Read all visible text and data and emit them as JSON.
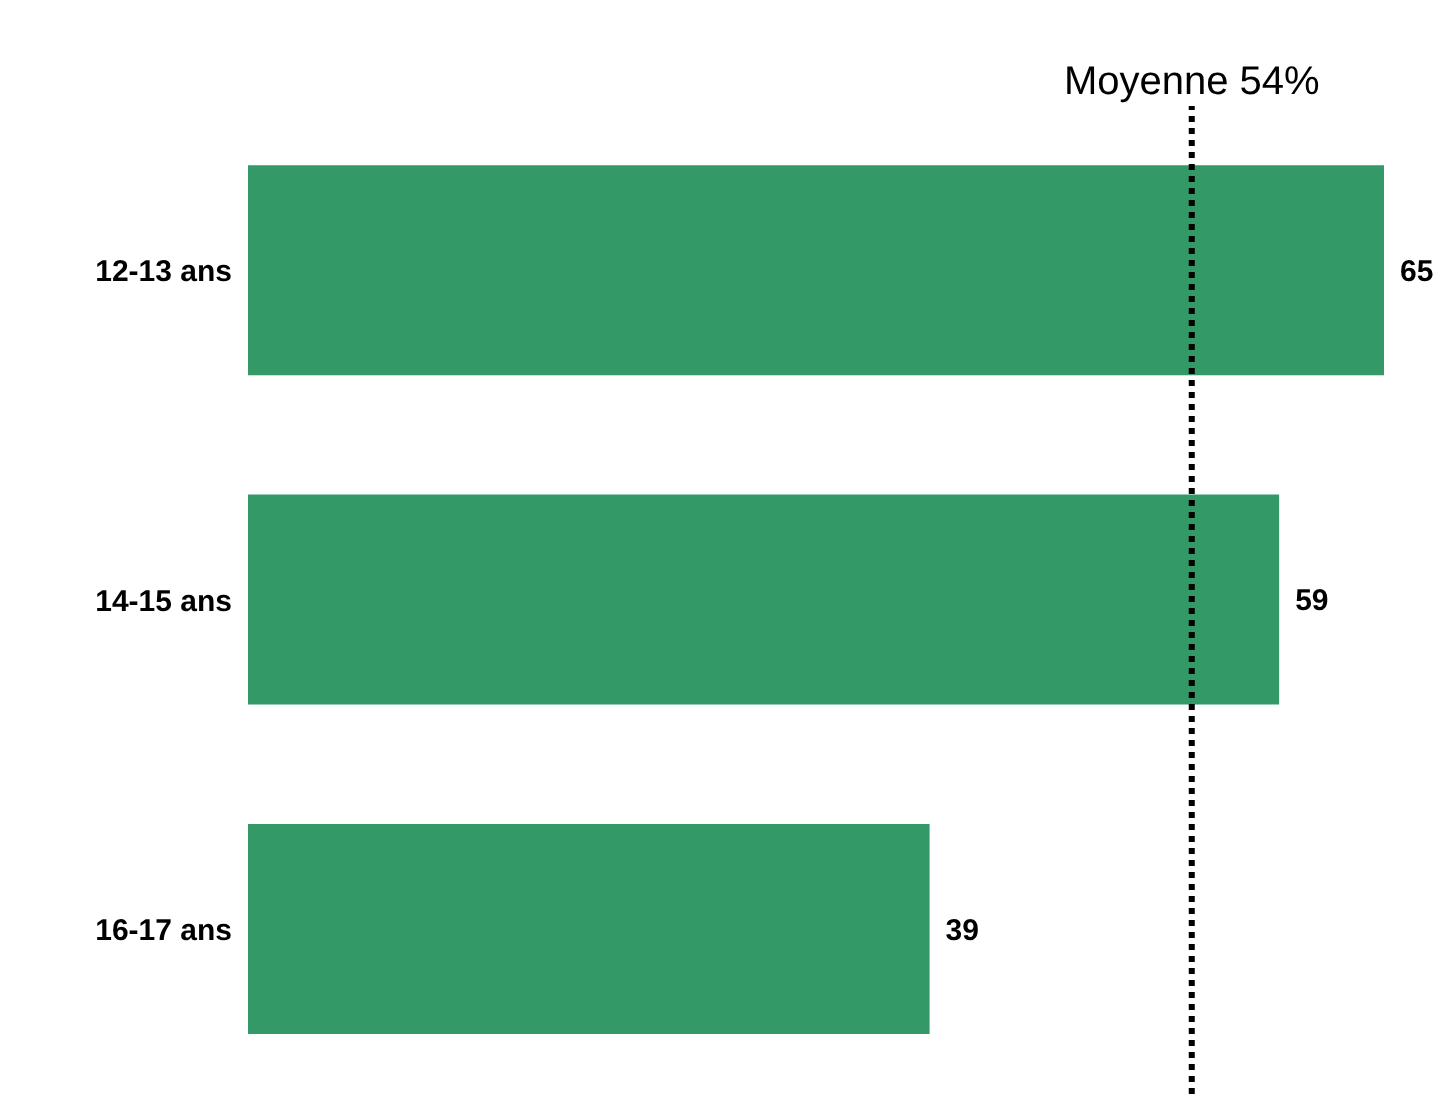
{
  "chart_data": {
    "type": "bar",
    "orientation": "horizontal",
    "categories": [
      "12-13 ans",
      "14-15 ans",
      "16-17 ans"
    ],
    "values": [
      65,
      59,
      39
    ],
    "color": "#339966",
    "data_labels": true,
    "tick_labels": "y",
    "grid": false,
    "legend": false,
    "ref_lines": [
      {
        "axis": "x",
        "value": 54,
        "label": "Moyenne 54%",
        "color": "#000000",
        "line_style": "dotted"
      }
    ]
  }
}
